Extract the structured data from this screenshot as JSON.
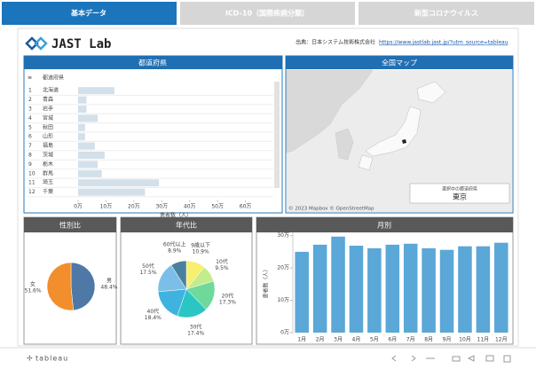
{
  "tabs": [
    "基本データ",
    "ICD-10（国際疾病分類）",
    "新型コロナウイルス"
  ],
  "header": {
    "logo": "JAST Lab",
    "source": "出典：日本システム技術株式会社",
    "url": "https://www.jastlab.jast.jp/?utm_source=tableau"
  },
  "map": {
    "title": "全国マップ",
    "attribution": "© 2023 Mapbox © OpenStreetMap",
    "legend_title": "選択中の都道府県",
    "legend_value": "東京"
  },
  "footer": {
    "brand": "tableau"
  },
  "chart_data": [
    {
      "type": "hbar",
      "title": "都道府県",
      "column_header": "都道府県",
      "ranks": [
        1,
        2,
        3,
        4,
        5,
        6,
        7,
        8,
        9,
        10,
        11,
        12
      ],
      "categories": [
        "北海道",
        "青森",
        "岩手",
        "宮城",
        "秋田",
        "山形",
        "福島",
        "茨城",
        "栃木",
        "群馬",
        "埼玉",
        "千葉"
      ],
      "values": [
        130000,
        30000,
        30000,
        70000,
        25000,
        25000,
        60000,
        95000,
        70000,
        85000,
        290000,
        240000
      ],
      "color": "#d3e0ea",
      "xlim": [
        0,
        700000
      ],
      "xticks": [
        {
          "value": 0,
          "label": "0万"
        },
        {
          "value": 100000,
          "label": "10万"
        },
        {
          "value": 200000,
          "label": "20万"
        },
        {
          "value": 300000,
          "label": "30万"
        },
        {
          "value": 400000,
          "label": "40万"
        },
        {
          "value": 500000,
          "label": "50万"
        },
        {
          "value": 600000,
          "label": "60万"
        }
      ],
      "xlabel": "患者数（人）"
    },
    {
      "type": "pie",
      "title": "性別比",
      "categories": [
        "男",
        "女"
      ],
      "values": [
        48.4,
        51.6
      ],
      "value_labels": [
        "48.4%",
        "51.6%"
      ],
      "colors": [
        "#4e79a7",
        "#f28e2b"
      ]
    },
    {
      "type": "pie",
      "title": "年代比",
      "categories": [
        "9歳以下",
        "10代",
        "20代",
        "30代",
        "40代",
        "50代",
        "60代以上"
      ],
      "values": [
        10.9,
        9.5,
        17.3,
        17.4,
        18.4,
        17.5,
        8.9
      ],
      "value_labels": [
        "10.9%",
        "9.5%",
        "17.3%",
        "17.4%",
        "18.4%",
        "17.5%",
        "8.9%"
      ],
      "colors": [
        "#f7ef6e",
        "#c3ec8c",
        "#6fd99b",
        "#2ac6c4",
        "#3fb3e0",
        "#7bbfe8",
        "#4a7f9e"
      ]
    },
    {
      "type": "bar",
      "title": "月別",
      "categories": [
        "1月",
        "2月",
        "3月",
        "4月",
        "5月",
        "6月",
        "7月",
        "8月",
        "9月",
        "10月",
        "11月",
        "12月"
      ],
      "values": [
        250000,
        272000,
        297000,
        269000,
        261000,
        272000,
        275000,
        261000,
        256000,
        267000,
        267000,
        278000
      ],
      "color": "#5aa7d8",
      "ylim": [
        0,
        310000
      ],
      "yticks": [
        {
          "value": 0,
          "label": "0万"
        },
        {
          "value": 100000,
          "label": "10万"
        },
        {
          "value": 200000,
          "label": "20万"
        },
        {
          "value": 300000,
          "label": "30万"
        }
      ],
      "ylabel": "患者数（人）"
    }
  ]
}
